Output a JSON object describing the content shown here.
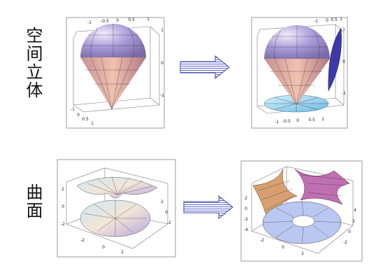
{
  "labels": {
    "solid": "空间立体",
    "surface": "曲面"
  },
  "panels": [
    {
      "ticks": [
        "-1",
        "-0.5",
        "0",
        "0.5",
        "1",
        "1",
        "0",
        "-1",
        "-1",
        "0",
        "0.5",
        "1"
      ]
    },
    {
      "ticks": [
        "-1",
        "0",
        "0.5",
        "1",
        "1",
        "0",
        "-1",
        "-1",
        "-0.5",
        "0",
        "0.5",
        "1"
      ]
    },
    {
      "ticks": [
        "2",
        "0",
        "-2",
        "-2",
        "0",
        "2",
        "2",
        "0",
        "-2"
      ]
    },
    {
      "ticks": [
        "2",
        "0",
        "-2",
        "-4",
        "-2",
        "0",
        "2",
        "4",
        "2",
        "0",
        "-2"
      ]
    }
  ]
}
